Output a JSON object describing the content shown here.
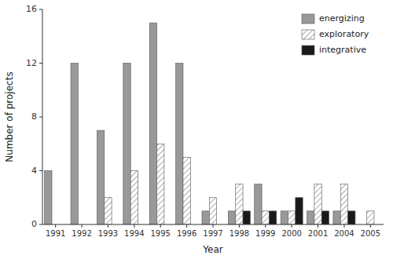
{
  "chart_data": {
    "type": "bar",
    "categories": [
      "1991",
      "1992",
      "1993",
      "1994",
      "1995",
      "1996",
      "1997",
      "1998",
      "1999",
      "2000",
      "2001",
      "2004",
      "2005"
    ],
    "series": [
      {
        "name": "energizing",
        "color": "#999999",
        "values": [
          4,
          12,
          7,
          12,
          15,
          12,
          1,
          1,
          3,
          1,
          1,
          1,
          0
        ]
      },
      {
        "name": "exploratory",
        "color": "#ffffff",
        "values": [
          0,
          0,
          2,
          4,
          6,
          5,
          2,
          3,
          1,
          1,
          3,
          3,
          1
        ]
      },
      {
        "name": "integrative",
        "color": "#1a1a1a",
        "values": [
          0,
          0,
          0,
          0,
          0,
          0,
          0,
          1,
          1,
          2,
          1,
          1,
          0
        ]
      }
    ],
    "x_label": "Year",
    "y_label": "Number of projects",
    "ylim": [
      0,
      16
    ],
    "yticks": [
      0,
      4,
      8,
      12,
      16
    ],
    "grid": false,
    "legend": "upper right"
  }
}
